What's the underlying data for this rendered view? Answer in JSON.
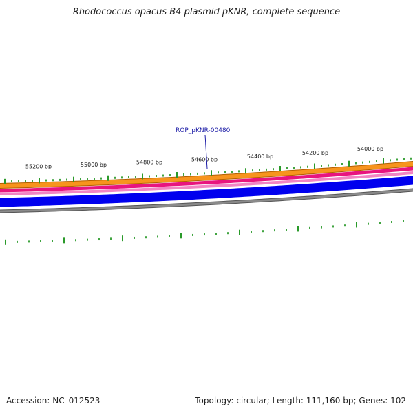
{
  "title": "Rhodococcus opacus B4 plasmid pKNR, complete sequence",
  "footer": {
    "accession": "Accession: NC_012523",
    "topology": "Topology: circular",
    "length": "Length: 111,160 bp",
    "genes": "Genes: 102"
  },
  "ruler": {
    "labels": [
      "55200 bp",
      "55000 bp",
      "54800 bp",
      "54600 bp",
      "54400 bp",
      "54200 bp",
      "54000 bp"
    ]
  },
  "gene_label": {
    "text": "ROP_pKNR-00480"
  },
  "colors": {
    "orange": "#f7941d",
    "magenta": "#e8157f",
    "pink": "#f285c4",
    "blue": "#0000ee",
    "gray": "#8a8a8a",
    "green_tick": "#2a9a2a",
    "label_blue": "#1a1aa6"
  }
}
